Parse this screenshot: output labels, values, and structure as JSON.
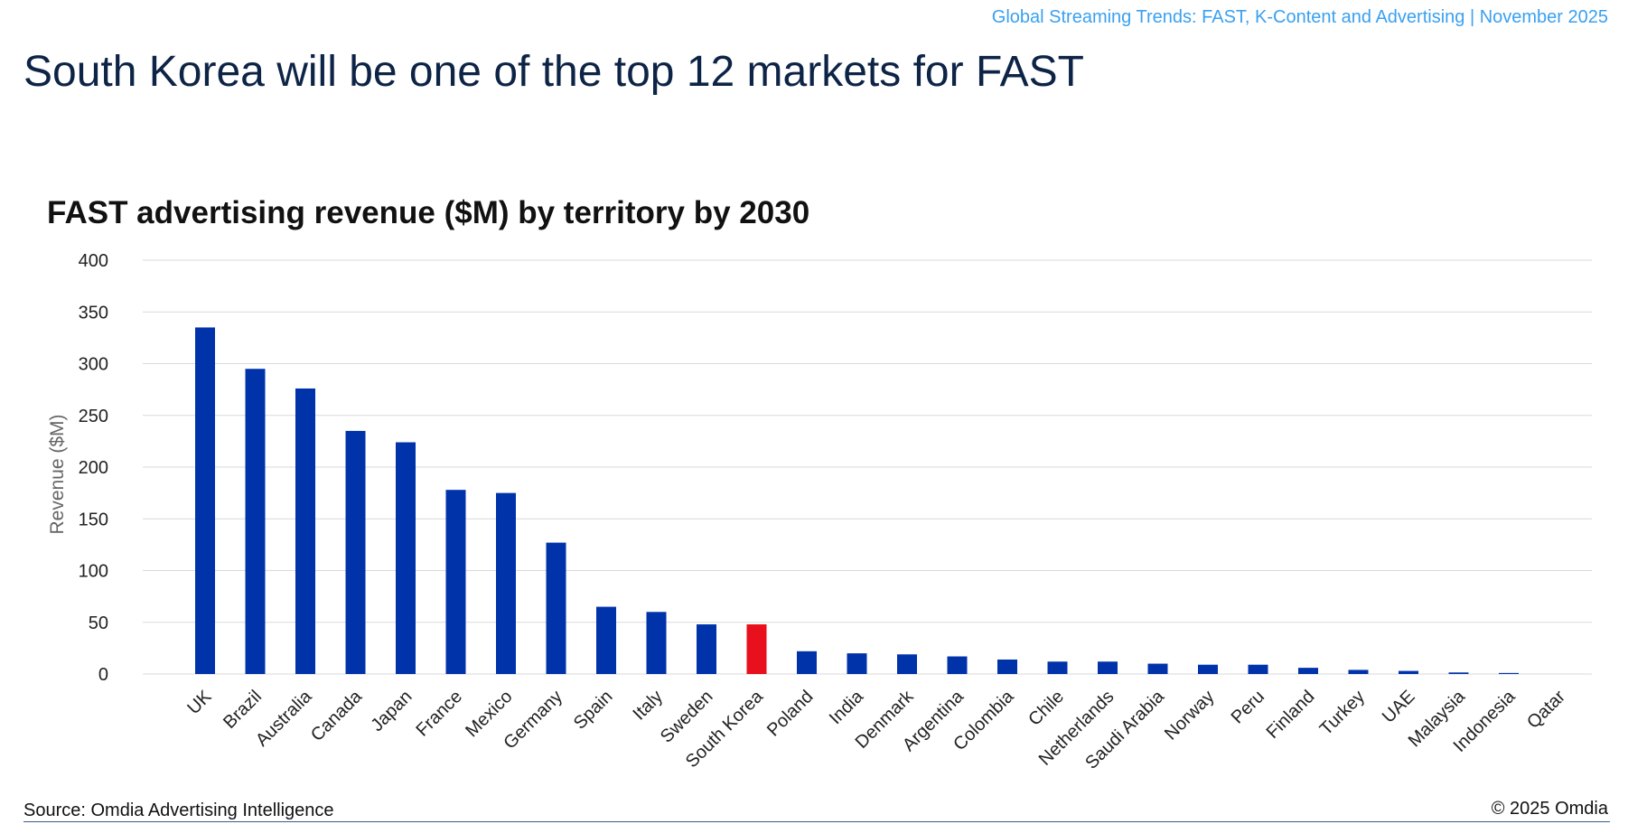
{
  "header": {
    "note": "Global Streaming Trends: FAST, K-Content and Advertising | November 2025"
  },
  "slide": {
    "title": "South Korea will be one of the top 12 markets for FAST"
  },
  "footer": {
    "source": "Source: Omdia Advertising Intelligence",
    "copyright": "© 2025 Omdia"
  },
  "chart_data": {
    "type": "bar",
    "title": "FAST advertising revenue ($M) by territory by 2030",
    "xlabel": "",
    "ylabel": "Revenue ($M)",
    "ylim": [
      0,
      400
    ],
    "yticks": [
      0,
      50,
      100,
      150,
      200,
      250,
      300,
      350,
      400
    ],
    "grid": true,
    "legend": "none",
    "categories": [
      "UK",
      "Brazil",
      "Australia",
      "Canada",
      "Japan",
      "France",
      "Mexico",
      "Germany",
      "Spain",
      "Italy",
      "Sweden",
      "South Korea",
      "Poland",
      "India",
      "Denmark",
      "Argentina",
      "Colombia",
      "Chile",
      "Netherlands",
      "Saudi Arabia",
      "Norway",
      "Peru",
      "Finland",
      "Turkey",
      "UAE",
      "Malaysia",
      "Indonesia",
      "Qatar"
    ],
    "values": [
      335,
      295,
      276,
      235,
      224,
      178,
      175,
      127,
      65,
      60,
      48,
      48,
      22,
      20,
      19,
      17,
      14,
      12,
      12,
      10,
      9,
      9,
      6,
      4,
      3,
      1.5,
      1,
      0
    ],
    "colors": {
      "default": "#0033aa",
      "highlight": "#e8101c",
      "grid": "#d9d9d9",
      "axis_text": "#222222",
      "ylabel_text": "#666666"
    },
    "highlight_category": "South Korea"
  }
}
